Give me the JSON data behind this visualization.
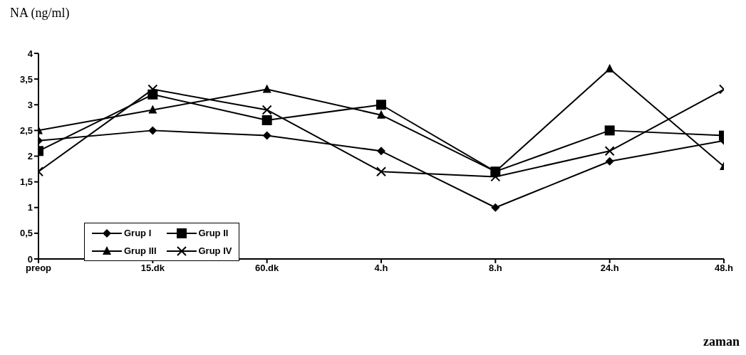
{
  "chart_data": {
    "type": "line",
    "ylabel": "NA (ng/ml)",
    "xlabel": "zaman",
    "categories": [
      "preop",
      "15.dk",
      "60.dk",
      "4.h",
      "8.h",
      "24.h",
      "48.h"
    ],
    "series": [
      {
        "name": "Grup I",
        "color": "#000000",
        "marker": "diamond",
        "values": [
          2.3,
          2.5,
          2.4,
          2.1,
          1.0,
          1.9,
          2.3
        ]
      },
      {
        "name": "Grup II",
        "color": "#000000",
        "marker": "square",
        "values": [
          2.1,
          3.2,
          2.7,
          3.0,
          1.7,
          2.5,
          2.4
        ]
      },
      {
        "name": "Grup III",
        "color": "#000000",
        "marker": "triangle",
        "values": [
          2.5,
          2.9,
          3.3,
          2.8,
          1.7,
          3.7,
          1.8
        ]
      },
      {
        "name": "Grup IV",
        "color": "#000000",
        "marker": "cross",
        "values": [
          1.7,
          3.3,
          2.9,
          1.7,
          1.6,
          2.1,
          3.3
        ]
      }
    ],
    "ylim": [
      0,
      4
    ],
    "yticks": [
      0,
      {
        "value": 0.5,
        "label": "0,5"
      },
      1,
      {
        "value": 1.5,
        "label": "1,5"
      },
      2,
      {
        "value": 2.5,
        "label": "2,5"
      },
      3,
      {
        "value": 3.5,
        "label": "3,5"
      },
      4
    ],
    "grid": false,
    "legend": "bottom left",
    "line_style": "solid"
  }
}
